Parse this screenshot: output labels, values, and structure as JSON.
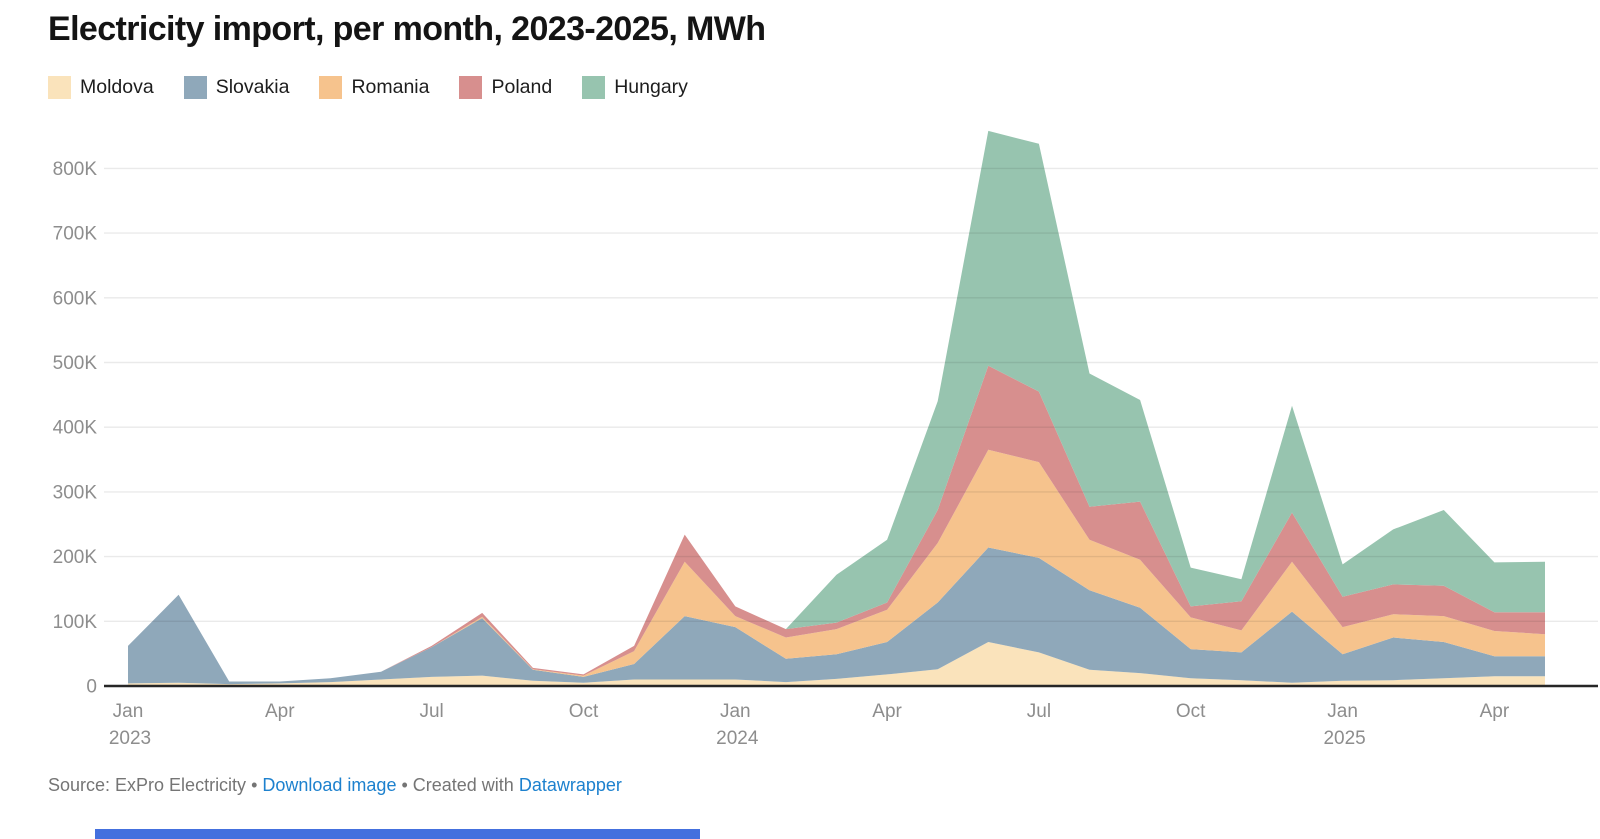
{
  "header": {
    "title": "Electricity import, per month, 2023-2025, MWh"
  },
  "legend": [
    {
      "label": "Moldova",
      "color": "#FAE3BB"
    },
    {
      "label": "Slovakia",
      "color": "#8FA8BA"
    },
    {
      "label": "Romania",
      "color": "#F6C38D"
    },
    {
      "label": "Poland",
      "color": "#D78F8E"
    },
    {
      "label": "Hungary",
      "color": "#97C4AF"
    }
  ],
  "chart_data": {
    "type": "area",
    "stacked": true,
    "title": "Electricity import, per month, 2023-2025, MWh",
    "unit": "MWh",
    "ylim": [
      0,
      800000
    ],
    "grid": true,
    "legend_position": "top",
    "x": [
      "Jan 2023",
      "Feb 2023",
      "Mar 2023",
      "Apr 2023",
      "May 2023",
      "Jun 2023",
      "Jul 2023",
      "Aug 2023",
      "Sep 2023",
      "Oct 2023",
      "Nov 2023",
      "Dec 2023",
      "Jan 2024",
      "Feb 2024",
      "Mar 2024",
      "Apr 2024",
      "May 2024",
      "Jun 2024",
      "Jul 2024",
      "Aug 2024",
      "Sep 2024",
      "Oct 2024",
      "Nov 2024",
      "Dec 2024",
      "Jan 2025",
      "Feb 2025",
      "Mar 2025",
      "Apr 2025",
      "May 2025"
    ],
    "series": [
      {
        "name": "Moldova",
        "color": "#FAE3BB",
        "values": [
          4000,
          5000,
          3000,
          4000,
          6000,
          10000,
          14000,
          16000,
          8000,
          5000,
          10000,
          10000,
          10000,
          6000,
          11000,
          18000,
          26000,
          68000,
          52000,
          25000,
          20000,
          12000,
          9000,
          5000,
          8000,
          9000,
          12000,
          15000,
          15000
        ]
      },
      {
        "name": "Slovakia",
        "color": "#8FA8BA",
        "values": [
          58000,
          136000,
          4000,
          3000,
          6000,
          12000,
          46000,
          89000,
          17000,
          9000,
          24000,
          98000,
          81000,
          36000,
          38000,
          50000,
          103000,
          146000,
          146000,
          123000,
          101000,
          45000,
          43000,
          110000,
          41000,
          66000,
          56000,
          31000,
          31000
        ]
      },
      {
        "name": "Romania",
        "color": "#F6C38D",
        "values": [
          0,
          0,
          0,
          0,
          0,
          0,
          0,
          2000,
          1000,
          2000,
          20000,
          84000,
          17000,
          33000,
          39000,
          50000,
          92000,
          151000,
          148000,
          78000,
          74000,
          49000,
          34000,
          77000,
          42000,
          36000,
          40000,
          39000,
          34000
        ]
      },
      {
        "name": "Poland",
        "color": "#D78F8E",
        "values": [
          0,
          0,
          0,
          0,
          0,
          0,
          2000,
          6000,
          2000,
          2000,
          8000,
          42000,
          15000,
          13000,
          10000,
          11000,
          51000,
          130000,
          109000,
          51000,
          90000,
          17000,
          45000,
          76000,
          47000,
          46000,
          47000,
          29000,
          34000
        ]
      },
      {
        "name": "Hungary",
        "color": "#97C4AF",
        "values": [
          0,
          0,
          0,
          0,
          0,
          0,
          0,
          0,
          0,
          0,
          0,
          0,
          0,
          0,
          74000,
          97000,
          168000,
          363000,
          383000,
          206000,
          157000,
          60000,
          34000,
          165000,
          50000,
          85000,
          117000,
          77000,
          78000
        ]
      }
    ],
    "y_axis": {
      "ticks": [
        {
          "label": "0",
          "value": 0
        },
        {
          "label": "100K",
          "value": 100000
        },
        {
          "label": "200K",
          "value": 200000
        },
        {
          "label": "300K",
          "value": 300000
        },
        {
          "label": "400K",
          "value": 400000
        },
        {
          "label": "500K",
          "value": 500000
        },
        {
          "label": "600K",
          "value": 600000
        },
        {
          "label": "700K",
          "value": 700000
        },
        {
          "label": "800K",
          "value": 800000
        }
      ]
    },
    "x_axis": {
      "ticks": [
        {
          "index": 0,
          "label": "Jan",
          "year": "2023"
        },
        {
          "index": 3,
          "label": "Apr"
        },
        {
          "index": 6,
          "label": "Jul"
        },
        {
          "index": 9,
          "label": "Oct"
        },
        {
          "index": 12,
          "label": "Jan",
          "year": "2024"
        },
        {
          "index": 15,
          "label": "Apr"
        },
        {
          "index": 18,
          "label": "Jul"
        },
        {
          "index": 21,
          "label": "Oct"
        },
        {
          "index": 24,
          "label": "Jan",
          "year": "2025"
        },
        {
          "index": 27,
          "label": "Apr"
        }
      ]
    }
  },
  "footer": {
    "source_text": "Source: ExPro Electricity",
    "sep": " • ",
    "download_label": "Download image",
    "created_prefix": "Created with ",
    "datawrapper_label": "Datawrapper",
    "text_color": "#757575",
    "link_color": "#1D81CE"
  },
  "misc": {
    "selection_bar_color": "#4470DE",
    "baseline_color": "#262626",
    "axis_text_color": "#8D8D8D"
  }
}
